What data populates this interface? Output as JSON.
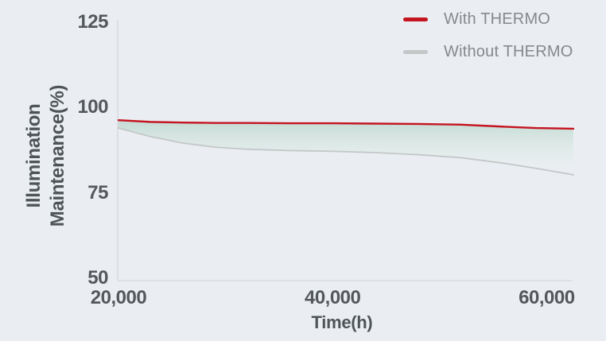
{
  "chart_data": {
    "type": "area",
    "title": "",
    "xlabel": "Time(h)",
    "ylabel": "Illumination Maintenance(%)",
    "x": [
      20000,
      23000,
      26000,
      29000,
      32000,
      36000,
      40000,
      44000,
      48000,
      52000,
      56000,
      59000,
      62500
    ],
    "series": [
      {
        "name": "With THERMO",
        "color": "#c41420",
        "line_width": 2.4,
        "values": [
          96.3,
          95.8,
          95.6,
          95.5,
          95.5,
          95.4,
          95.4,
          95.3,
          95.2,
          95.0,
          94.4,
          94.0,
          93.8
        ]
      },
      {
        "name": "Without THERMO",
        "color": "#c3c7c8",
        "line_width": 1.8,
        "values": [
          94.0,
          91.5,
          89.6,
          88.4,
          87.8,
          87.4,
          87.2,
          86.8,
          86.2,
          85.3,
          83.7,
          82.2,
          80.3
        ]
      }
    ],
    "fill_between": {
      "top_series": 0,
      "bottom_series": 1,
      "gradient_top": "#c2dad2",
      "gradient_mid": "#d9e8e3",
      "gradient_bottom": "#edf2f2"
    },
    "xlim": [
      20000,
      62500
    ],
    "ylim": [
      50,
      125
    ],
    "xticks": [
      {
        "label": "20,000",
        "value": 20000
      },
      {
        "label": "40,000",
        "value": 40000
      },
      {
        "label": "60,000",
        "value": 60000
      }
    ],
    "yticks": [
      {
        "label": "125",
        "value": 125
      },
      {
        "label": "100",
        "value": 100
      },
      {
        "label": "75",
        "value": 75
      },
      {
        "label": "50",
        "value": 50
      }
    ],
    "legend_position": "top-right",
    "grid": false,
    "background": "#eaeef2",
    "axis_color": "#d8dbde",
    "text_color": "#54585b",
    "legend_text_color": "#85898c"
  }
}
